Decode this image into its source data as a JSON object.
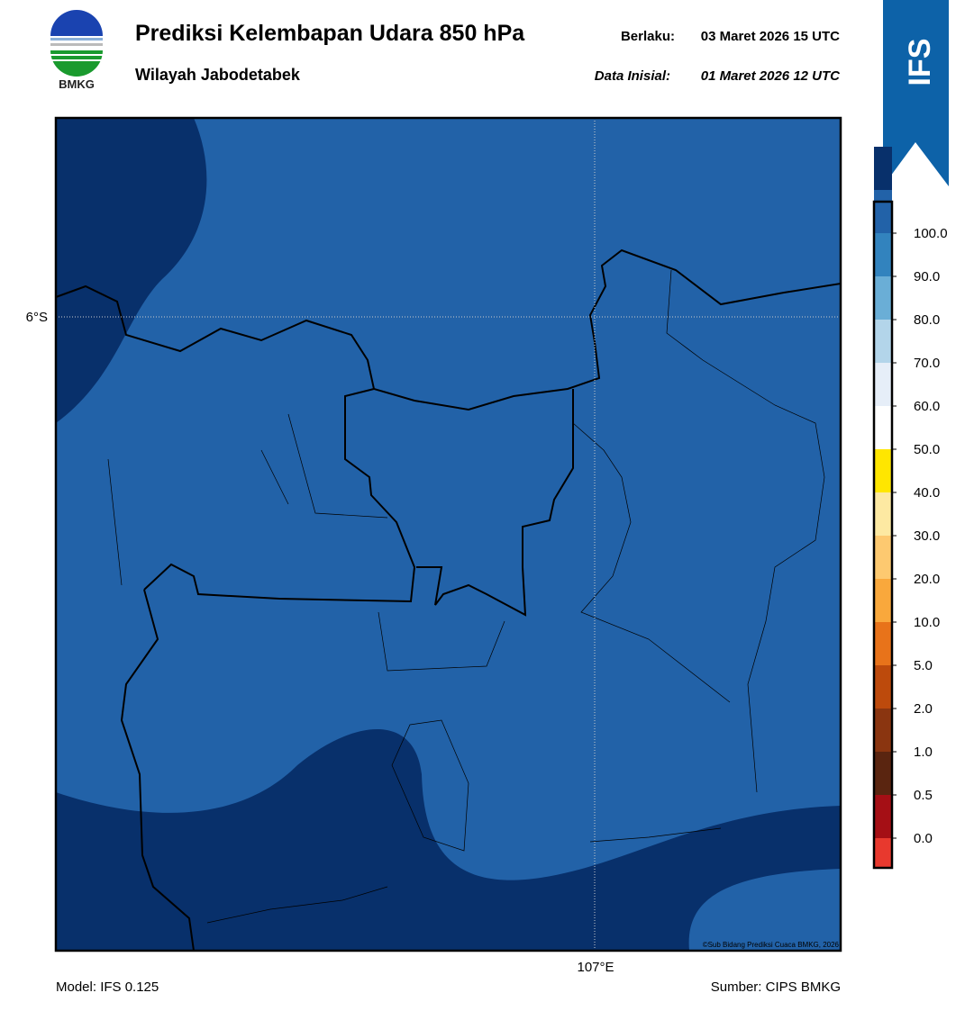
{
  "header": {
    "title": "Prediksi Kelembapan Udara 850 hPa",
    "subtitle": "Wilayah Jabodetabek",
    "valid_label": "Berlaku:",
    "valid_time": "03 Maret 2026 15 UTC",
    "init_label": "Data Inisial:",
    "init_time": "01 Maret 2026 12 UTC",
    "logo_text": "BMKG",
    "ribbon": "IFS"
  },
  "map": {
    "lat_label": "6°S",
    "lon_label": "107°E",
    "credit": "©Sub Bidang Prediksi Cuaca BMKG, 2026"
  },
  "colorbar": {
    "labels": [
      "0.0",
      "0.5",
      "1.0",
      "2.0",
      "5.0",
      "10.0",
      "20.0",
      "30.0",
      "40.0",
      "50.0",
      "60.0",
      "70.0",
      "80.0",
      "90.0",
      "100.0"
    ],
    "colors": [
      "#e8392e",
      "#a50f15",
      "#5a2510",
      "#8a3510",
      "#bd4a0c",
      "#e8731a",
      "#f9a83c",
      "#fdc970",
      "#fde9a2",
      "#ffe600",
      "#ffffff",
      "#e6eef8",
      "#b3d5ea",
      "#6aaed6",
      "#3283be",
      "#2262a8",
      "#08306b",
      "#3f0a58"
    ]
  },
  "footer": {
    "model": "Model: IFS 0.125",
    "source": "Sumber: CIPS BMKG"
  }
}
